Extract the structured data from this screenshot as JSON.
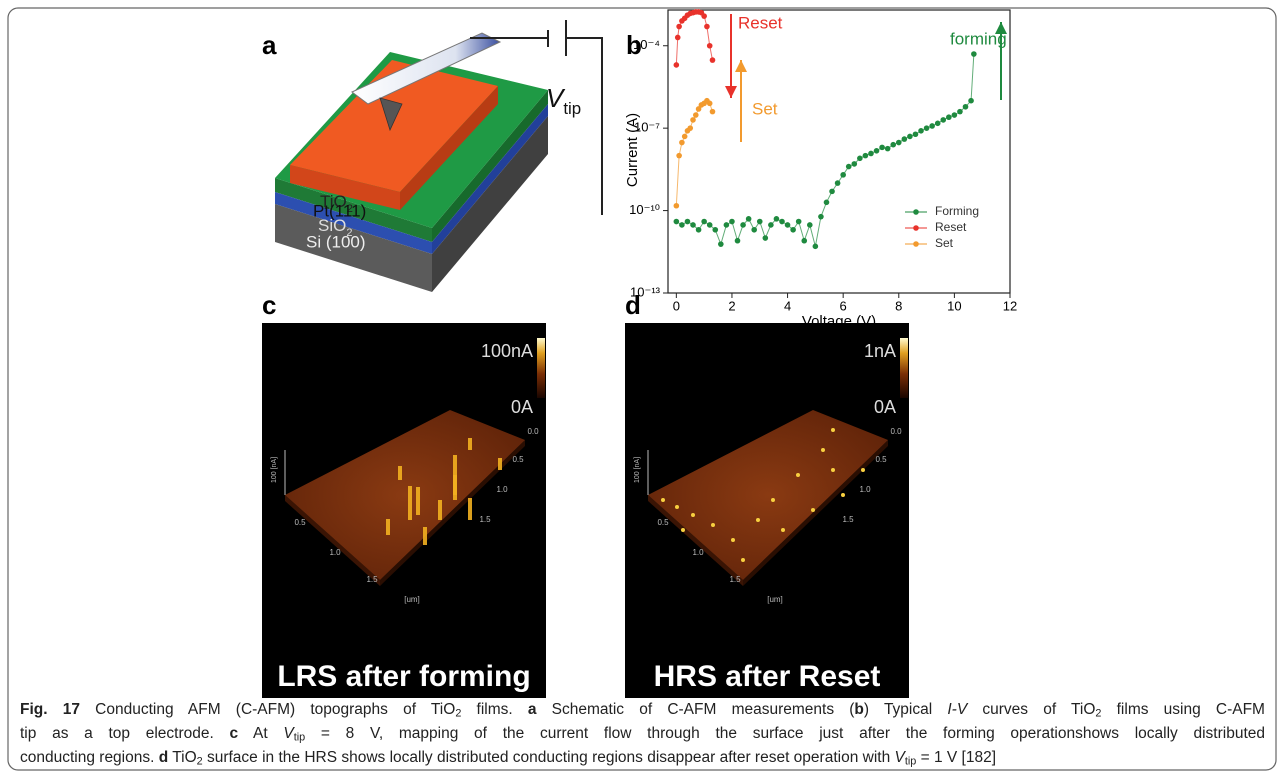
{
  "panels": {
    "a": {
      "label": "a",
      "layers": {
        "tio2": [
          {
            "text": "TiO"
          },
          {
            "text": "2",
            "style": "sub"
          }
        ],
        "pt": "Pt(111)",
        "sio2": [
          {
            "text": "SiO"
          },
          {
            "text": "2",
            "style": "sub"
          }
        ],
        "si": "Si (100)"
      },
      "vtip": [
        {
          "text": "V",
          "style": "italic"
        },
        {
          "text": "tip",
          "style": "sub"
        }
      ]
    },
    "c": {
      "label": "c",
      "colorbar_max": "100nA",
      "colorbar_min": "0A",
      "z_axis": "100 [nA]",
      "axis_text": [
        "0.5",
        "1.0",
        "1.5",
        "[um]",
        "0.0",
        "0.5",
        "1.0",
        "1.5"
      ],
      "caption": "LRS after forming"
    },
    "d": {
      "label": "d",
      "colorbar_max": "1nA",
      "colorbar_min": "0A",
      "z_axis": "100 [nA]",
      "axis_text": [
        "0.5",
        "1.0",
        "1.5",
        "[um]",
        "0.0",
        "0.5",
        "1.0",
        "1.5"
      ],
      "caption": "HRS after Reset"
    }
  },
  "chart_data": {
    "type": "line",
    "panel_label": "b",
    "x_label": "Voltage (V)",
    "y_label": "Current (A)",
    "log_y": true,
    "xlim": [
      -0.3,
      12
    ],
    "xticks": [
      0,
      2,
      4,
      6,
      8,
      10,
      12
    ],
    "ylim": [
      1e-13,
      0.002
    ],
    "yticks": [
      {
        "value": 1e-13,
        "label": "10⁻¹³"
      },
      {
        "value": 1e-10,
        "label": "10⁻¹⁰"
      },
      {
        "value": 1e-07,
        "label": "10⁻⁷"
      },
      {
        "value": 0.0001,
        "label": "10⁻⁴"
      }
    ],
    "legend": "lower right",
    "series": [
      {
        "name": "Forming",
        "color": "#1f8a3f",
        "x": [
          0,
          0.2,
          0.4,
          0.6,
          0.8,
          1,
          1.2,
          1.4,
          1.6,
          1.8,
          2,
          2.2,
          2.4,
          2.6,
          2.8,
          3,
          3.2,
          3.4,
          3.6,
          3.8,
          4,
          4.2,
          4.4,
          4.6,
          4.8,
          5,
          5.2,
          5.4,
          5.6,
          5.8,
          6,
          6.2,
          6.4,
          6.6,
          6.8,
          7,
          7.2,
          7.4,
          7.6,
          7.8,
          8,
          8.2,
          8.4,
          8.6,
          8.8,
          9,
          9.2,
          9.4,
          9.6,
          9.8,
          10,
          10.2,
          10.4,
          10.6,
          10.7
        ],
        "values": [
          4e-11,
          3e-11,
          4e-11,
          3e-11,
          2e-11,
          4e-11,
          3e-11,
          2e-11,
          6e-12,
          3e-11,
          4e-11,
          8e-12,
          3e-11,
          5e-11,
          2e-11,
          4e-11,
          1e-11,
          3e-11,
          5e-11,
          4e-11,
          3e-11,
          2e-11,
          4e-11,
          8e-12,
          3e-11,
          5e-12,
          6e-11,
          2e-10,
          5e-10,
          1e-09,
          2e-09,
          4e-09,
          5e-09,
          8e-09,
          1e-08,
          1.2e-08,
          1.5e-08,
          2e-08,
          1.8e-08,
          2.5e-08,
          3e-08,
          4e-08,
          5e-08,
          6e-08,
          8e-08,
          1e-07,
          1.2e-07,
          1.5e-07,
          2e-07,
          2.5e-07,
          3e-07,
          4e-07,
          6e-07,
          1e-06,
          5e-05
        ]
      },
      {
        "name": "Reset",
        "color": "#e8322b",
        "x": [
          0,
          0.05,
          0.1,
          0.2,
          0.3,
          0.4,
          0.5,
          0.6,
          0.7,
          0.8,
          0.9,
          1,
          1.1,
          1.2,
          1.3
        ],
        "values": [
          2e-05,
          0.0002,
          0.0005,
          0.0008,
          0.001,
          0.0013,
          0.0015,
          0.0016,
          0.0017,
          0.0017,
          0.0016,
          0.0012,
          0.0005,
          0.0001,
          3e-05
        ]
      },
      {
        "name": "Set",
        "color": "#f29a2e",
        "x": [
          0,
          0.1,
          0.2,
          0.3,
          0.4,
          0.5,
          0.6,
          0.7,
          0.8,
          0.9,
          1,
          1.1,
          1.2,
          1.3
        ],
        "values": [
          1.5e-10,
          1e-08,
          3e-08,
          5e-08,
          8e-08,
          1e-07,
          2e-07,
          3e-07,
          5e-07,
          7e-07,
          8e-07,
          1e-06,
          8e-07,
          4e-07
        ]
      }
    ],
    "annotations": [
      {
        "text": "Reset",
        "color": "#e8322b"
      },
      {
        "text": "Set",
        "color": "#f29a2e"
      },
      {
        "text": "forming",
        "color": "#1f8a3f"
      }
    ]
  },
  "caption": {
    "lines": [
      [
        {
          "text": "Fig. 17",
          "style": "bold"
        },
        {
          "text": " Conducting AFM (C-AFM) topographs of TiO"
        },
        {
          "text": "2",
          "style": "sub"
        },
        {
          "text": " films. "
        },
        {
          "text": "a",
          "style": "bold"
        },
        {
          "text": " Schematic of C-AFM measurements ("
        },
        {
          "text": "b",
          "style": "bold"
        },
        {
          "text": ") Typical "
        },
        {
          "text": "I-V",
          "style": "italic"
        },
        {
          "text": " curves of TiO"
        },
        {
          "text": "2",
          "style": "sub"
        },
        {
          "text": " films using C-AFM"
        }
      ],
      [
        {
          "text": "tip as a top electrode. "
        },
        {
          "text": "c",
          "style": "bold"
        },
        {
          "text": " At "
        },
        {
          "text": "V",
          "style": "italic"
        },
        {
          "text": "tip",
          "style": "sub"
        },
        {
          "text": " = 8 V, mapping of the current flow through the surface just after the forming operationshows locally distributed"
        }
      ],
      [
        {
          "text": "conducting regions. "
        },
        {
          "text": "d",
          "style": "bold"
        },
        {
          "text": " TiO"
        },
        {
          "text": "2",
          "style": "sub"
        },
        {
          "text": " surface in the HRS shows locally distributed conducting regions disappear after reset operation with "
        },
        {
          "text": "V",
          "style": "italic"
        },
        {
          "text": "tip",
          "style": "sub"
        },
        {
          "text": " = 1 V [182]"
        }
      ]
    ]
  }
}
